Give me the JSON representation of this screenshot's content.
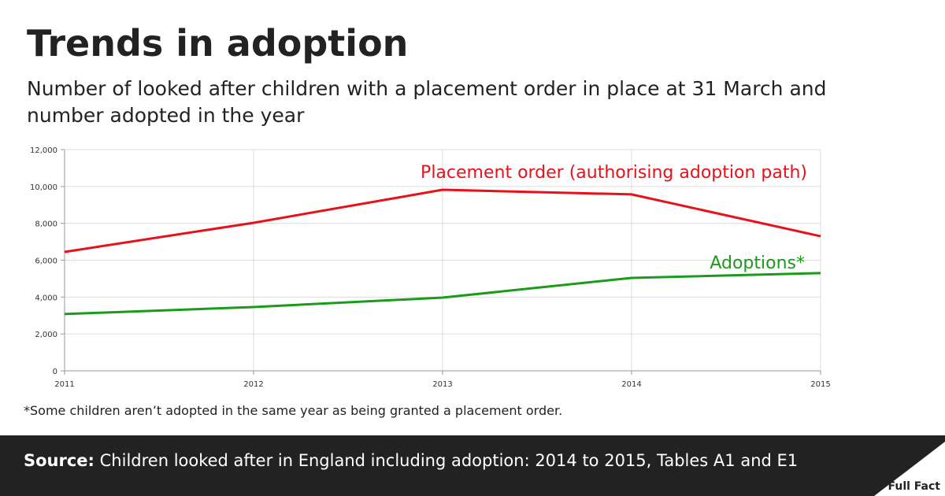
{
  "chart_data": {
    "type": "line",
    "title": "Trends in adoption",
    "subtitle": "Number of looked after children with a placement order in place at 31 March and number adopted in the year",
    "x": [
      2011,
      2012,
      2013,
      2014,
      2015
    ],
    "series": [
      {
        "name": "Placement order (authorising adoption path)",
        "color": "#e8111a",
        "values": [
          6450,
          8030,
          9820,
          9570,
          7300
        ]
      },
      {
        "name": "Adoptions*",
        "color": "#1a9c1a",
        "values": [
          3080,
          3460,
          3970,
          5040,
          5300
        ]
      }
    ],
    "xlim": [
      2011,
      2015
    ],
    "xticks": [
      2011,
      2012,
      2013,
      2014,
      2015
    ],
    "ylim": [
      0,
      12000
    ],
    "yticks": [
      0,
      {
        "value": 2000,
        "label": "2,000"
      },
      {
        "value": 4000,
        "label": "4,000"
      },
      {
        "value": 6000,
        "label": "6,000"
      },
      {
        "value": 8000,
        "label": "8,000"
      },
      {
        "value": 10000,
        "label": "10,000"
      },
      {
        "value": 12000,
        "label": "12,000"
      }
    ],
    "grid": true
  },
  "footnote": "*Some children aren’t adopted in the same year as being granted a placement order.",
  "footer": {
    "source_label": "Source:",
    "source_text": "Children looked after in England including adoption: 2014 to 2015, Tables A1 and E1",
    "logo": "Full Fact"
  }
}
